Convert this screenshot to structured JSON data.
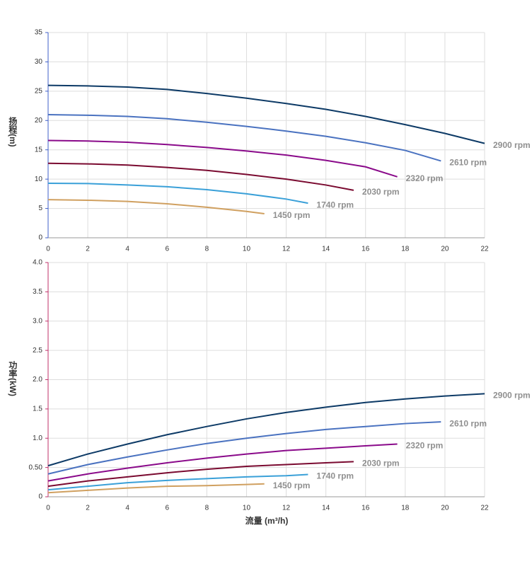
{
  "chart_data": [
    {
      "type": "line",
      "ylabel": "扬程(m)",
      "axis_color": "#3f5fc8",
      "grid": true,
      "xlim": [
        0,
        22
      ],
      "xticks": [
        0,
        2,
        4,
        6,
        8,
        10,
        12,
        14,
        16,
        18,
        20,
        22
      ],
      "ylim": [
        0,
        35
      ],
      "yticks": [
        0,
        5,
        10,
        15,
        20,
        25,
        30,
        35
      ],
      "series": [
        {
          "name": "2900 rpm",
          "color": "#0d3a66",
          "x": [
            0,
            2,
            4,
            6,
            8,
            10,
            12,
            14,
            16,
            18,
            20,
            22
          ],
          "values": [
            26,
            25.9,
            25.7,
            25.3,
            24.6,
            23.8,
            22.9,
            21.9,
            20.7,
            19.3,
            17.8,
            16.1
          ]
        },
        {
          "name": "2610 rpm",
          "color": "#4a72c0",
          "x": [
            0,
            2,
            4,
            6,
            8,
            10,
            12,
            14,
            16,
            18,
            19.8
          ],
          "values": [
            21,
            20.9,
            20.7,
            20.3,
            19.7,
            19,
            18.2,
            17.3,
            16.2,
            14.9,
            13.1
          ]
        },
        {
          "name": "2320 rpm",
          "color": "#8a0a8a",
          "x": [
            0,
            2,
            4,
            6,
            8,
            10,
            12,
            14,
            16,
            17.6
          ],
          "values": [
            16.6,
            16.5,
            16.3,
            15.9,
            15.4,
            14.8,
            14.1,
            13.2,
            12.1,
            10.4
          ]
        },
        {
          "name": "2030 rpm",
          "color": "#7a0a30",
          "x": [
            0,
            2,
            4,
            6,
            8,
            10,
            12,
            14,
            15.4
          ],
          "values": [
            12.7,
            12.6,
            12.4,
            12,
            11.5,
            10.8,
            10,
            9,
            8.1
          ]
        },
        {
          "name": "1740 rpm",
          "color": "#3aa0d8",
          "x": [
            0,
            2,
            4,
            6,
            8,
            10,
            12,
            13.1
          ],
          "values": [
            9.3,
            9.25,
            9,
            8.7,
            8.2,
            7.5,
            6.6,
            5.9
          ]
        },
        {
          "name": "1450 rpm",
          "color": "#d0a060",
          "x": [
            0,
            2,
            4,
            6,
            8,
            10,
            10.9
          ],
          "values": [
            6.5,
            6.4,
            6.2,
            5.8,
            5.2,
            4.5,
            4.1
          ]
        }
      ]
    },
    {
      "type": "line",
      "ylabel": "功率(kW)",
      "xlabel": "流量 (m³/h)",
      "axis_color": "#c0306a",
      "grid": true,
      "xlim": [
        0,
        22
      ],
      "xticks": [
        0,
        2,
        4,
        6,
        8,
        10,
        12,
        14,
        16,
        18,
        20,
        22
      ],
      "ylim": [
        0,
        4
      ],
      "yticks": [
        0,
        {
          "value": 0.5,
          "label": "0.50"
        },
        {
          "value": 1,
          "label": "1.0"
        },
        1.5,
        {
          "value": 2,
          "label": "2.0"
        },
        2.5,
        {
          "value": 3,
          "label": "3.0"
        },
        3.5,
        {
          "value": 4,
          "label": "4.0"
        }
      ],
      "series": [
        {
          "name": "2900 rpm",
          "color": "#0d3a66",
          "x": [
            0,
            2,
            4,
            6,
            8,
            10,
            12,
            14,
            16,
            18,
            20,
            22
          ],
          "values": [
            0.53,
            0.73,
            0.9,
            1.06,
            1.2,
            1.33,
            1.44,
            1.53,
            1.61,
            1.67,
            1.72,
            1.76
          ]
        },
        {
          "name": "2610 rpm",
          "color": "#4a72c0",
          "x": [
            0,
            2,
            4,
            6,
            8,
            10,
            12,
            14,
            16,
            18,
            19.8
          ],
          "values": [
            0.39,
            0.55,
            0.68,
            0.8,
            0.91,
            1,
            1.08,
            1.15,
            1.2,
            1.25,
            1.28
          ]
        },
        {
          "name": "2320 rpm",
          "color": "#8a0a8a",
          "x": [
            0,
            2,
            4,
            6,
            8,
            10,
            12,
            14,
            16,
            17.6
          ],
          "values": [
            0.27,
            0.39,
            0.49,
            0.58,
            0.66,
            0.73,
            0.79,
            0.83,
            0.87,
            0.9
          ]
        },
        {
          "name": "2030 rpm",
          "color": "#7a0a30",
          "x": [
            0,
            2,
            4,
            6,
            8,
            10,
            12,
            14,
            15.4
          ],
          "values": [
            0.18,
            0.27,
            0.34,
            0.41,
            0.47,
            0.52,
            0.55,
            0.58,
            0.6
          ]
        },
        {
          "name": "1740 rpm",
          "color": "#3aa0d8",
          "x": [
            0,
            2,
            4,
            6,
            8,
            10,
            12,
            13.1
          ],
          "values": [
            0.12,
            0.18,
            0.24,
            0.28,
            0.31,
            0.34,
            0.36,
            0.38
          ]
        },
        {
          "name": "1450 rpm",
          "color": "#d0a060",
          "x": [
            0,
            2,
            4,
            6,
            8,
            10,
            10.9
          ],
          "values": [
            0.07,
            0.11,
            0.15,
            0.18,
            0.19,
            0.21,
            0.22
          ]
        }
      ]
    }
  ]
}
